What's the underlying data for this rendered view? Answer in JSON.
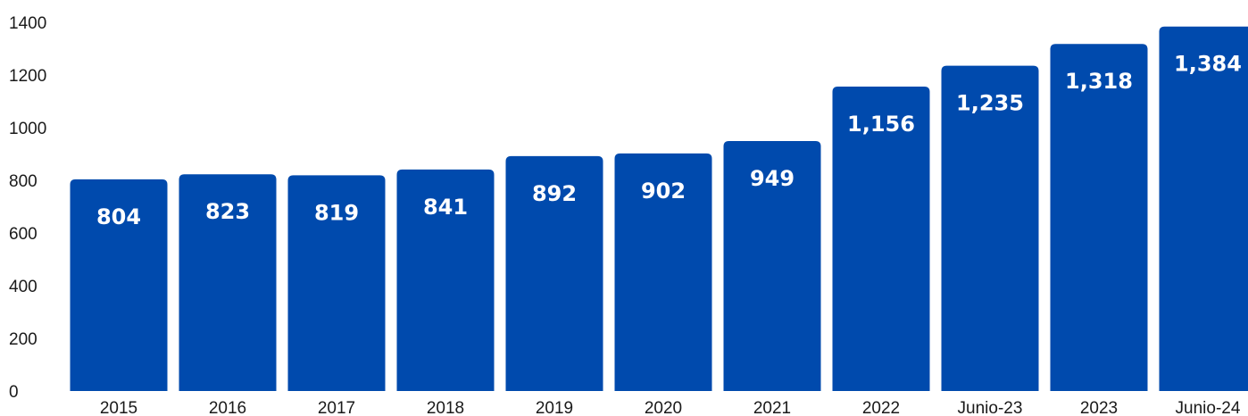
{
  "chart_data": {
    "type": "bar",
    "categories": [
      "2015",
      "2016",
      "2017",
      "2018",
      "2019",
      "2020",
      "2021",
      "2022",
      "Junio-23",
      "2023",
      "Junio-24"
    ],
    "values": [
      804,
      823,
      819,
      841,
      892,
      902,
      949,
      1156,
      1235,
      1318,
      1384
    ],
    "value_labels": [
      "804",
      "823",
      "819",
      "841",
      "892",
      "902",
      "949",
      "1,156",
      "1,235",
      "1,318",
      "1,384"
    ],
    "y_ticks": [
      "0",
      "200",
      "400",
      "600",
      "800",
      "1000",
      "1200",
      "1400"
    ],
    "ylim": [
      0,
      1400
    ],
    "title": "",
    "xlabel": "",
    "ylabel": "",
    "grid": false,
    "legend": "none",
    "bar_color": "#004AAD",
    "label_color": "#FFFFFF"
  }
}
